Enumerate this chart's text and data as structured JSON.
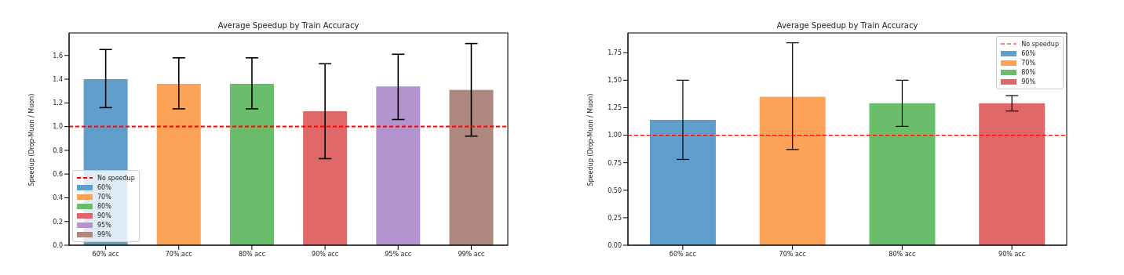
{
  "chart_data": [
    {
      "type": "bar",
      "title": "Average Speedup by Train Accuracy",
      "ylabel": "Speedup (Drop-Muon / Muon)",
      "categories": [
        "60% acc",
        "70% acc",
        "80% acc",
        "90% acc",
        "95% acc",
        "99% acc"
      ],
      "stacked": true,
      "series": [
        {
          "name": "60%",
          "color": "#5f9ecb",
          "values": [
            1.4,
            null,
            null,
            null,
            null,
            null
          ],
          "errors": [
            [
              1.16,
              1.65
            ],
            null,
            null,
            null,
            null,
            null
          ]
        },
        {
          "name": "70%",
          "color": "#fca357",
          "values": [
            null,
            1.36,
            null,
            null,
            null,
            null
          ],
          "errors": [
            null,
            [
              1.15,
              1.58
            ],
            null,
            null,
            null,
            null
          ]
        },
        {
          "name": "80%",
          "color": "#6abd6a",
          "values": [
            null,
            null,
            1.36,
            null,
            null,
            null
          ],
          "errors": [
            null,
            null,
            [
              1.15,
              1.58
            ],
            null,
            null,
            null
          ]
        },
        {
          "name": "90%",
          "color": "#e06767",
          "values": [
            null,
            null,
            null,
            1.13,
            null,
            null
          ],
          "errors": [
            null,
            null,
            null,
            [
              0.73,
              1.53
            ],
            null,
            null
          ]
        },
        {
          "name": "95%",
          "color": "#b294cf",
          "values": [
            null,
            null,
            null,
            null,
            1.34,
            null
          ],
          "errors": [
            null,
            null,
            null,
            null,
            [
              1.06,
              1.61
            ],
            null
          ]
        },
        {
          "name": "99%",
          "color": "#ae877e",
          "values": [
            null,
            null,
            null,
            null,
            null,
            1.31
          ],
          "errors": [
            null,
            null,
            null,
            null,
            null,
            [
              0.92,
              1.7
            ]
          ]
        }
      ],
      "ylim": [
        0,
        1.79
      ],
      "yticks": [
        {
          "value": 0,
          "label": "0.0"
        },
        {
          "value": 0.2,
          "label": "0.2"
        },
        {
          "value": 0.4,
          "label": "0.4"
        },
        {
          "value": 0.6,
          "label": "0.6"
        },
        {
          "value": 0.8,
          "label": "0.8"
        },
        {
          "value": 1,
          "label": "1.0"
        },
        {
          "value": 1.2,
          "label": "1.2"
        },
        {
          "value": 1.4,
          "label": "1.4"
        },
        {
          "value": 1.6,
          "label": "1.6"
        }
      ],
      "ref_lines": [
        {
          "axis": "y",
          "value": 1,
          "label": "No speedup",
          "color": "#ff0000",
          "line_style": "dashed"
        }
      ],
      "grid": false,
      "legend": "bottom left"
    },
    {
      "type": "bar",
      "title": "Average Speedup by Train Accuracy",
      "ylabel": "Speedup (Drop-Muon / Muon)",
      "categories": [
        "60% acc",
        "70% acc",
        "80% acc",
        "90% acc"
      ],
      "stacked": true,
      "series": [
        {
          "name": "60%",
          "color": "#5f9ecb",
          "values": [
            1.14,
            null,
            null,
            null
          ],
          "errors": [
            [
              0.78,
              1.5
            ],
            null,
            null,
            null
          ]
        },
        {
          "name": "70%",
          "color": "#fca357",
          "values": [
            null,
            1.35,
            null,
            null
          ],
          "errors": [
            null,
            [
              0.87,
              1.84
            ],
            null,
            null
          ]
        },
        {
          "name": "80%",
          "color": "#6abd6a",
          "values": [
            null,
            null,
            1.29,
            null
          ],
          "errors": [
            null,
            null,
            [
              1.08,
              1.5
            ],
            null
          ]
        },
        {
          "name": "90%",
          "color": "#e06767",
          "values": [
            null,
            null,
            null,
            1.29
          ],
          "errors": [
            null,
            null,
            null,
            [
              1.22,
              1.36
            ]
          ]
        }
      ],
      "ylim": [
        0,
        1.93
      ],
      "yticks": [
        {
          "value": 0,
          "label": "0.00"
        },
        {
          "value": 0.25,
          "label": "0.25"
        },
        {
          "value": 0.5,
          "label": "0.50"
        },
        {
          "value": 0.75,
          "label": "0.75"
        },
        {
          "value": 1,
          "label": "1.00"
        },
        {
          "value": 1.25,
          "label": "1.25"
        },
        {
          "value": 1.5,
          "label": "1.50"
        },
        {
          "value": 1.75,
          "label": "1.75"
        }
      ],
      "ref_lines": [
        {
          "axis": "y",
          "value": 1,
          "label": "No speedup",
          "color": "#ff0000",
          "line_style": "dashed"
        }
      ],
      "grid": false,
      "legend": "top right"
    }
  ]
}
